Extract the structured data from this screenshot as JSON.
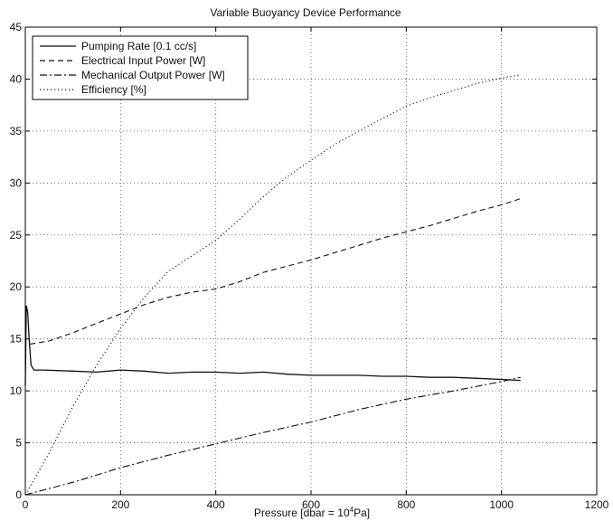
{
  "chart_data": {
    "type": "line",
    "title": "Variable Buoyancy Device Performance",
    "xlabel_main": "Pressure [dbar = 10",
    "xlabel_sup": "4",
    "xlabel_tail": "Pa]",
    "ylabel": "",
    "xlim": [
      0,
      1200
    ],
    "ylim": [
      0,
      45
    ],
    "x_ticks": [
      0,
      200,
      400,
      600,
      800,
      1000,
      1200
    ],
    "y_ticks": [
      0,
      5,
      10,
      15,
      20,
      25,
      30,
      35,
      40,
      45
    ],
    "grid": true,
    "legend_position": "top-left",
    "series": [
      {
        "name": "Pumping Rate [0.1 cc/s]",
        "style": "solid",
        "points": [
          [
            0,
            10.5
          ],
          [
            2,
            18.2
          ],
          [
            5,
            17.6
          ],
          [
            8,
            15.0
          ],
          [
            12,
            12.5
          ],
          [
            18,
            12.0
          ],
          [
            40,
            12.0
          ],
          [
            100,
            11.9
          ],
          [
            150,
            11.8
          ],
          [
            200,
            12.0
          ],
          [
            250,
            11.9
          ],
          [
            300,
            11.7
          ],
          [
            350,
            11.8
          ],
          [
            400,
            11.8
          ],
          [
            450,
            11.7
          ],
          [
            500,
            11.8
          ],
          [
            550,
            11.6
          ],
          [
            600,
            11.5
          ],
          [
            650,
            11.5
          ],
          [
            700,
            11.5
          ],
          [
            750,
            11.4
          ],
          [
            800,
            11.4
          ],
          [
            850,
            11.3
          ],
          [
            900,
            11.3
          ],
          [
            950,
            11.2
          ],
          [
            1000,
            11.1
          ],
          [
            1040,
            11.0
          ]
        ]
      },
      {
        "name": "Electrical Input Power [W]",
        "style": "dashed",
        "points": [
          [
            10,
            14.5
          ],
          [
            50,
            14.8
          ],
          [
            100,
            15.6
          ],
          [
            150,
            16.5
          ],
          [
            200,
            17.4
          ],
          [
            250,
            18.3
          ],
          [
            300,
            19.0
          ],
          [
            350,
            19.5
          ],
          [
            400,
            19.8
          ],
          [
            450,
            20.5
          ],
          [
            500,
            21.4
          ],
          [
            550,
            22.0
          ],
          [
            600,
            22.6
          ],
          [
            650,
            23.3
          ],
          [
            700,
            24.0
          ],
          [
            750,
            24.7
          ],
          [
            800,
            25.3
          ],
          [
            850,
            25.9
          ],
          [
            900,
            26.6
          ],
          [
            950,
            27.3
          ],
          [
            1000,
            27.9
          ],
          [
            1040,
            28.5
          ]
        ]
      },
      {
        "name": "Mechanical Output Power [W]",
        "style": "dashdot",
        "points": [
          [
            0,
            0.0
          ],
          [
            100,
            1.2
          ],
          [
            200,
            2.6
          ],
          [
            300,
            3.8
          ],
          [
            400,
            4.9
          ],
          [
            500,
            6.0
          ],
          [
            600,
            7.0
          ],
          [
            700,
            8.2
          ],
          [
            800,
            9.2
          ],
          [
            900,
            10.0
          ],
          [
            1000,
            10.9
          ],
          [
            1040,
            11.3
          ]
        ]
      },
      {
        "name": "Efficiency [%]",
        "style": "dotted",
        "points": [
          [
            0,
            0.0
          ],
          [
            50,
            4.0
          ],
          [
            100,
            8.5
          ],
          [
            150,
            12.5
          ],
          [
            200,
            16.0
          ],
          [
            250,
            19.0
          ],
          [
            300,
            21.5
          ],
          [
            350,
            23.0
          ],
          [
            400,
            24.5
          ],
          [
            450,
            26.5
          ],
          [
            500,
            28.7
          ],
          [
            550,
            30.6
          ],
          [
            600,
            32.2
          ],
          [
            650,
            33.7
          ],
          [
            700,
            35.0
          ],
          [
            750,
            36.2
          ],
          [
            800,
            37.4
          ],
          [
            850,
            38.2
          ],
          [
            900,
            38.9
          ],
          [
            950,
            39.6
          ],
          [
            1000,
            40.1
          ],
          [
            1040,
            40.4
          ]
        ]
      }
    ]
  }
}
